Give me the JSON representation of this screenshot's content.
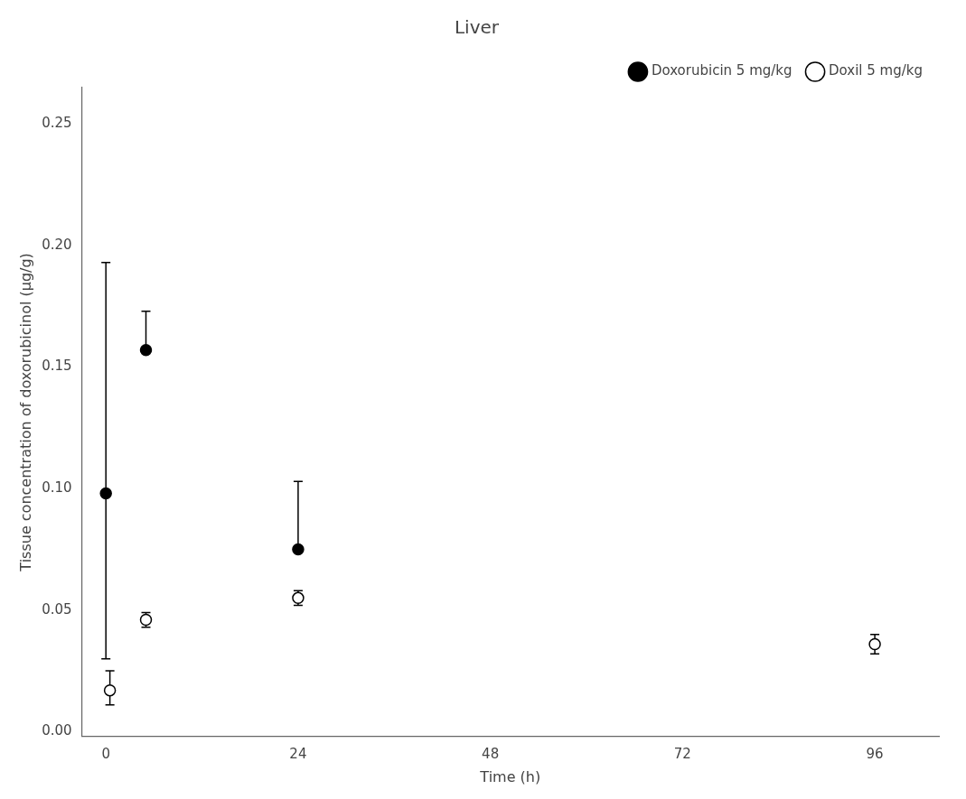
{
  "chart_data": {
    "type": "scatter",
    "title": "Liver",
    "xlabel": "Time (h)",
    "ylabel": "Tissue concentration of doxorubicinol (μg/g)",
    "xlim": [
      -3,
      104
    ],
    "ylim": [
      -0.002,
      0.265
    ],
    "xticks": [
      0,
      24,
      48,
      72,
      96
    ],
    "yticks": [
      {
        "value": 0,
        "label": "0.00"
      },
      0.05,
      {
        "value": 0.1,
        "label": "0.10"
      },
      0.15,
      {
        "value": 0.2,
        "label": "0.20"
      },
      0.25
    ],
    "grid": false,
    "legend": "upper right",
    "series": [
      {
        "name": "Doxorubicin 5 mg/kg",
        "color": "black",
        "marker": "circle",
        "x": [
          0,
          5,
          24
        ],
        "values": [
          0.098,
          0.157,
          0.075
        ],
        "yerr_up": [
          0.095,
          0.016,
          0.028
        ],
        "yerr_down": [
          0.068,
          0.0,
          0.0
        ]
      },
      {
        "name": "Doxil 5 mg/kg",
        "color": "black",
        "marker": "circle_open",
        "x": [
          0.5,
          5,
          24,
          96
        ],
        "values": [
          0.017,
          0.046,
          0.055,
          0.036
        ],
        "yerr_up": [
          0.008,
          0.003,
          0.003,
          0.004
        ],
        "yerr_down": [
          0.006,
          0.003,
          0.003,
          0.004
        ]
      }
    ]
  }
}
